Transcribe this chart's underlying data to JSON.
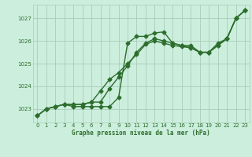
{
  "title": "Graphe pression niveau de la mer (hPa)",
  "background_color": "#cceedd",
  "grid_color": "#aaccbb",
  "line_color": "#2d6e2d",
  "xlim": [
    -0.5,
    23.5
  ],
  "ylim": [
    1022.4,
    1027.6
  ],
  "yticks": [
    1023,
    1024,
    1025,
    1026,
    1027
  ],
  "xticks": [
    0,
    1,
    2,
    3,
    4,
    5,
    6,
    7,
    8,
    9,
    10,
    11,
    12,
    13,
    14,
    15,
    16,
    17,
    18,
    19,
    20,
    21,
    22,
    23
  ],
  "line1_x": [
    0,
    1,
    2,
    3,
    4,
    5,
    6,
    7,
    8,
    9,
    10,
    11,
    12,
    13,
    14,
    15,
    16,
    17,
    18,
    19,
    20,
    21,
    22,
    23
  ],
  "line1_y": [
    1022.7,
    1023.0,
    1023.1,
    1023.2,
    1023.1,
    1023.1,
    1023.1,
    1023.1,
    1023.1,
    1023.5,
    1025.9,
    1026.2,
    1026.2,
    1026.35,
    1026.4,
    1025.9,
    1025.8,
    1025.8,
    1025.5,
    1025.5,
    1025.9,
    1026.1,
    1027.0,
    1027.35
  ],
  "line2_x": [
    0,
    1,
    2,
    3,
    4,
    5,
    6,
    7,
    8,
    9,
    10,
    11,
    12,
    13,
    14,
    15,
    16,
    17,
    18,
    19,
    20,
    21,
    22,
    23
  ],
  "line2_y": [
    1022.7,
    1023.0,
    1023.1,
    1023.2,
    1023.2,
    1023.2,
    1023.3,
    1023.3,
    1023.9,
    1024.4,
    1024.9,
    1025.5,
    1025.9,
    1026.1,
    1026.0,
    1025.9,
    1025.8,
    1025.7,
    1025.5,
    1025.5,
    1025.8,
    1026.1,
    1027.0,
    1027.35
  ],
  "line3_x": [
    0,
    1,
    2,
    3,
    4,
    5,
    6,
    7,
    8,
    9,
    10,
    11,
    12,
    13,
    14,
    15,
    16,
    17,
    18,
    19,
    20,
    21,
    22,
    23
  ],
  "line3_y": [
    1022.7,
    1023.0,
    1023.1,
    1023.2,
    1023.2,
    1023.2,
    1023.3,
    1023.8,
    1024.3,
    1024.6,
    1025.0,
    1025.4,
    1025.85,
    1026.0,
    1025.9,
    1025.8,
    1025.75,
    1025.7,
    1025.5,
    1025.5,
    1025.8,
    1026.1,
    1027.0,
    1027.35
  ],
  "marker_size": 2.5,
  "line_width": 1.0
}
